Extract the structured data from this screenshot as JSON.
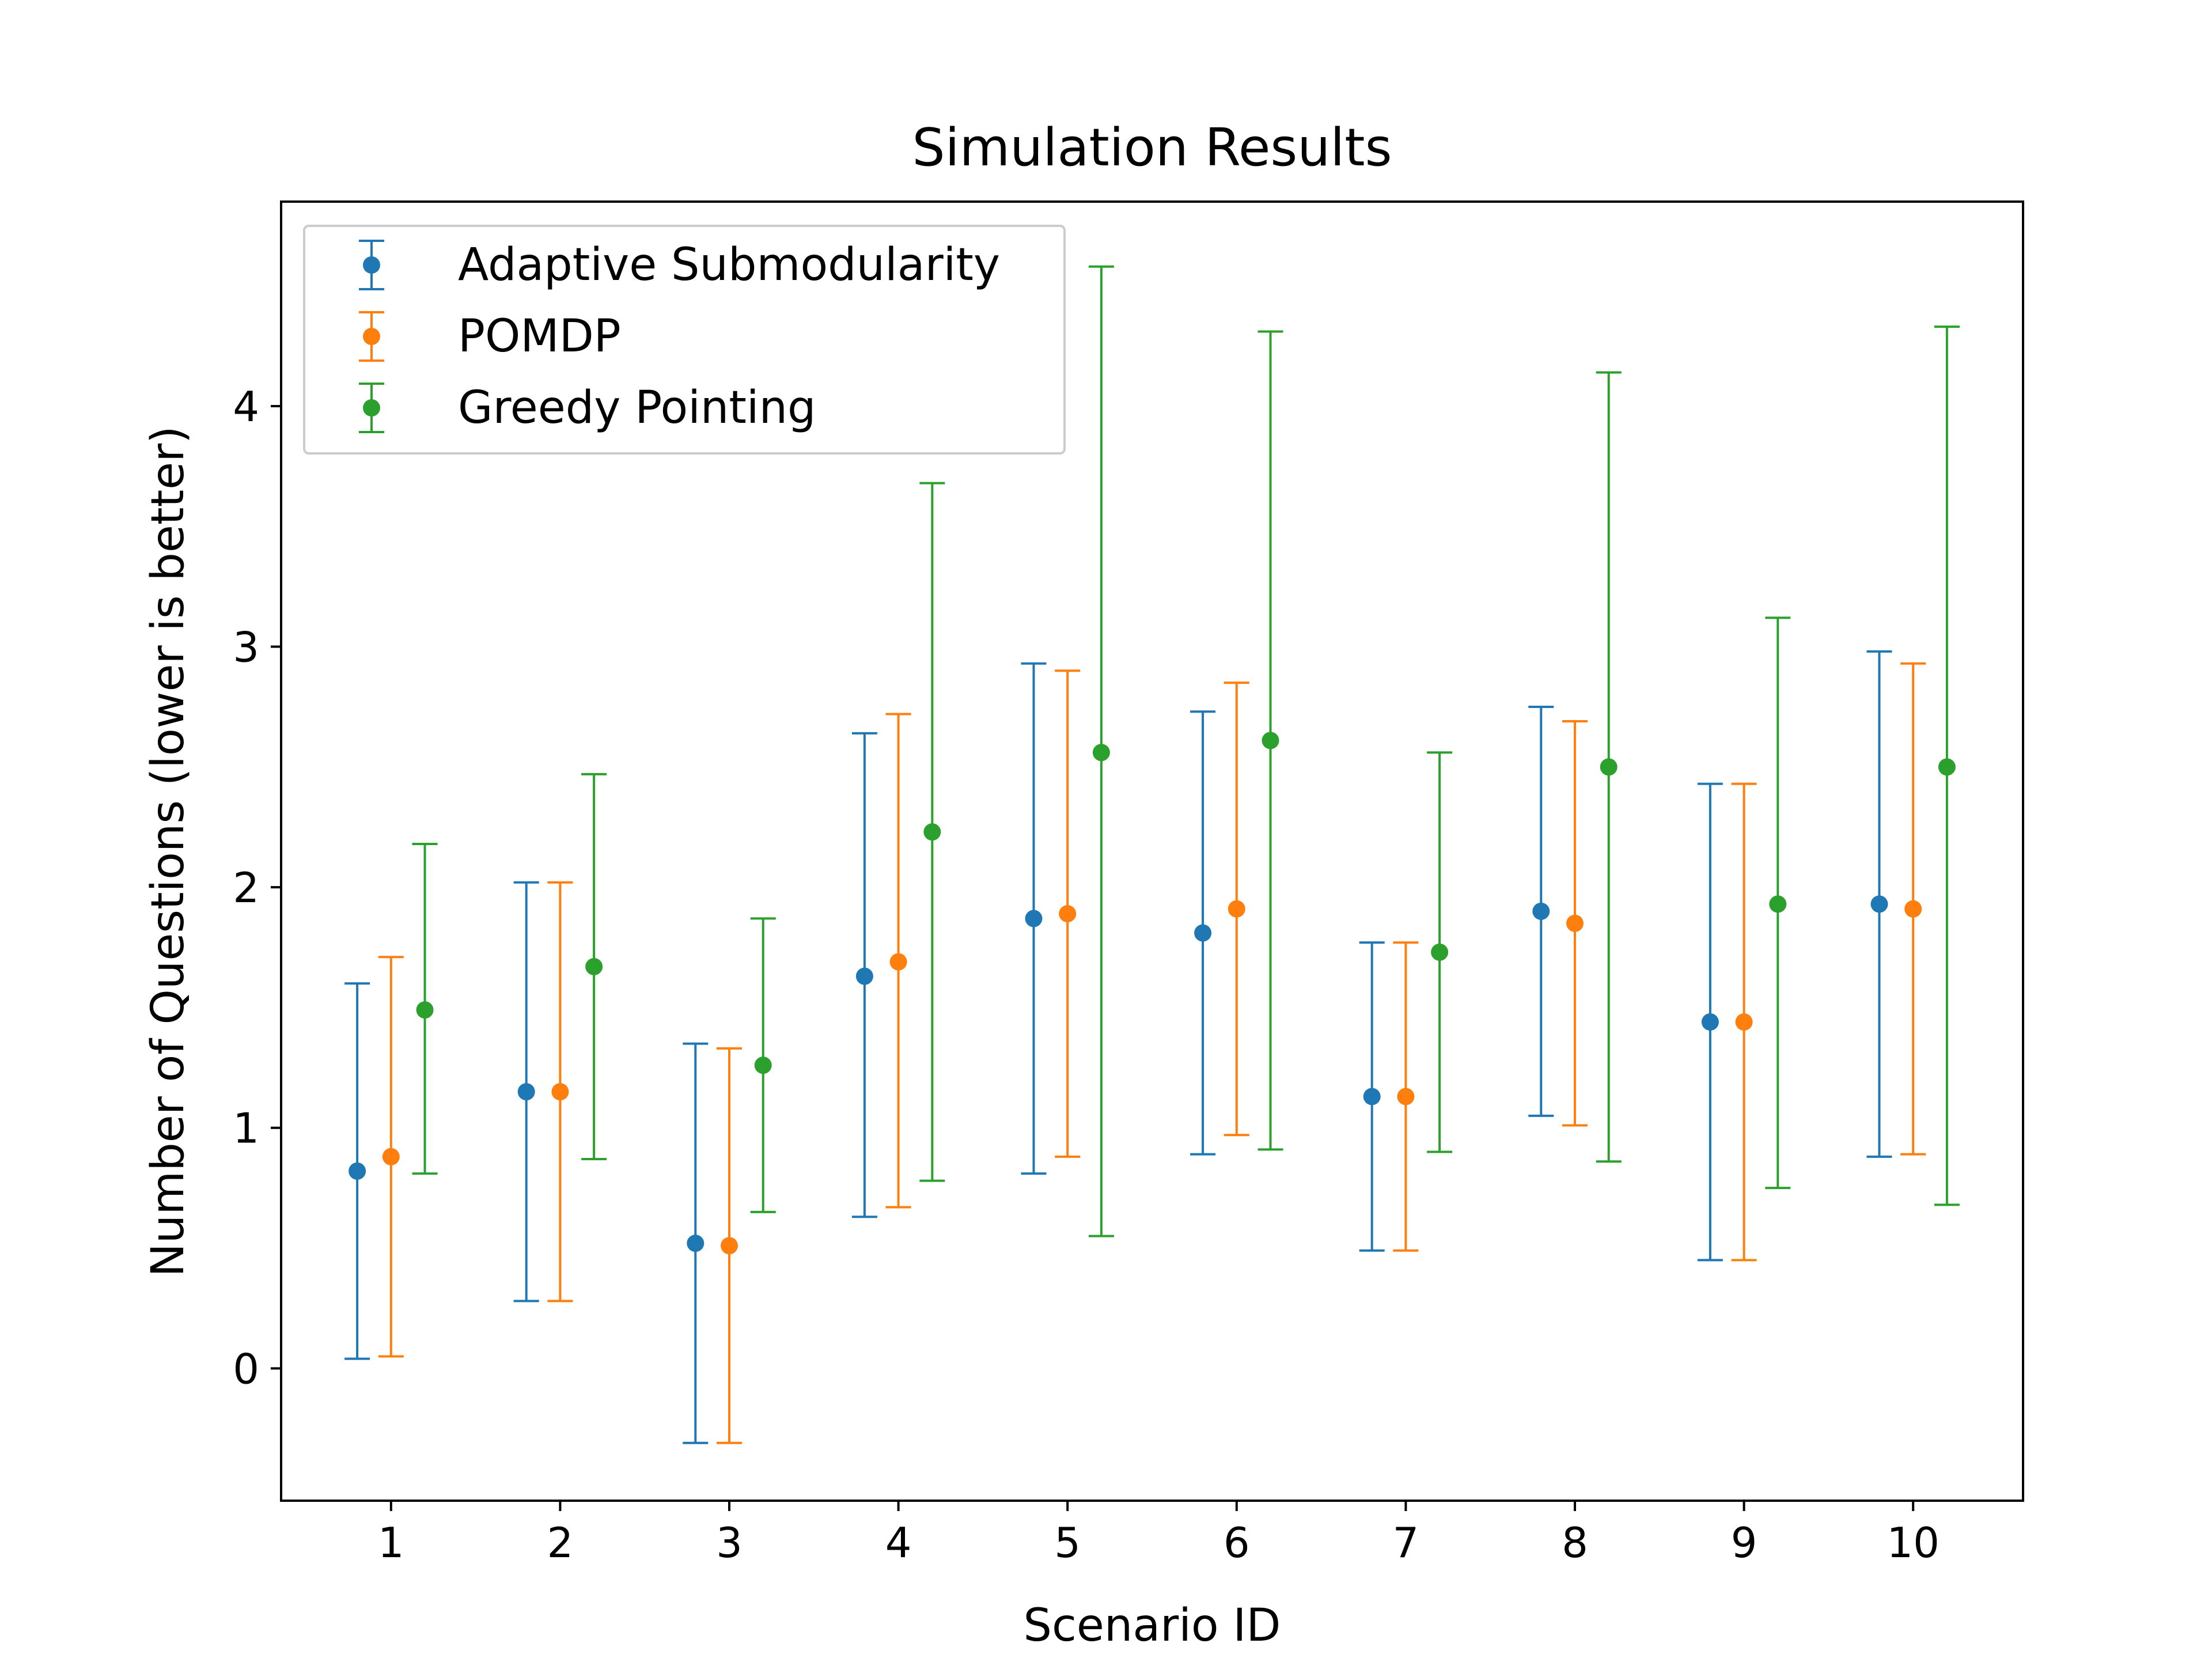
{
  "chart_data": {
    "type": "scatter",
    "title": "Simulation Results",
    "xlabel": "Scenario ID",
    "ylabel": "Number of Questions (lower is better)",
    "categories": [
      "1",
      "2",
      "3",
      "4",
      "5",
      "6",
      "7",
      "8",
      "9",
      "10"
    ],
    "x": [
      1,
      2,
      3,
      4,
      5,
      6,
      7,
      8,
      9,
      10
    ],
    "xlim": [
      0.35,
      10.65
    ],
    "ylim": [
      -0.55,
      4.85
    ],
    "yticks": [
      0,
      1,
      2,
      3,
      4
    ],
    "ytick_labels": [
      "0",
      "1",
      "2",
      "3",
      "4"
    ],
    "grid": false,
    "legend_position": "top-left",
    "error_bars": true,
    "series": [
      {
        "name": "Adaptive Submodularity",
        "color": "#1f77b4",
        "offset": -0.2,
        "values": [
          0.82,
          1.15,
          0.52,
          1.63,
          1.87,
          1.81,
          1.13,
          1.9,
          1.44,
          1.93
        ],
        "lower": [
          0.04,
          0.28,
          -0.31,
          0.63,
          0.81,
          0.89,
          0.49,
          1.05,
          0.45,
          0.88
        ],
        "upper": [
          1.6,
          2.02,
          1.35,
          2.64,
          2.93,
          2.73,
          1.77,
          2.75,
          2.43,
          2.98
        ]
      },
      {
        "name": "POMDP",
        "color": "#ff7f0e",
        "offset": 0.0,
        "values": [
          0.88,
          1.15,
          0.51,
          1.69,
          1.89,
          1.91,
          1.13,
          1.85,
          1.44,
          1.91
        ],
        "lower": [
          0.05,
          0.28,
          -0.31,
          0.67,
          0.88,
          0.97,
          0.49,
          1.01,
          0.45,
          0.89
        ],
        "upper": [
          1.71,
          2.02,
          1.33,
          2.72,
          2.9,
          2.85,
          1.77,
          2.69,
          2.43,
          2.93
        ]
      },
      {
        "name": "Greedy Pointing",
        "color": "#2ca02c",
        "offset": 0.2,
        "values": [
          1.49,
          1.67,
          1.26,
          2.23,
          2.56,
          2.61,
          1.73,
          2.5,
          1.93,
          2.5
        ],
        "lower": [
          0.81,
          0.87,
          0.65,
          0.78,
          0.55,
          0.91,
          0.9,
          0.86,
          0.75,
          0.68
        ],
        "upper": [
          2.18,
          2.47,
          1.87,
          3.68,
          4.58,
          4.31,
          2.56,
          4.14,
          3.12,
          4.33
        ]
      }
    ]
  }
}
